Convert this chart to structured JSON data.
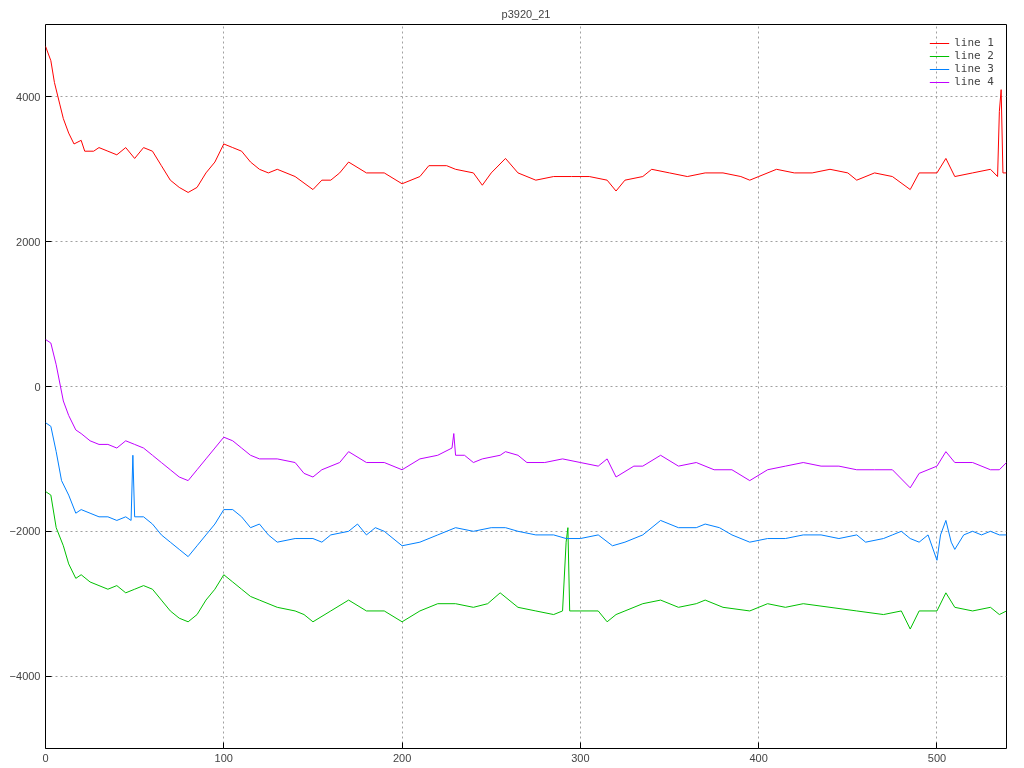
{
  "chart_data": {
    "type": "line",
    "title": "p3920_21",
    "xlim": [
      0,
      539
    ],
    "ylim": [
      -5000,
      5000
    ],
    "xticks": [
      0,
      100,
      200,
      300,
      400,
      500
    ],
    "yticks": [
      -4000,
      -2000,
      0,
      2000,
      4000
    ],
    "grid": true,
    "legend": "top right",
    "line_style": "solid",
    "marker": "none",
    "series": [
      {
        "name": "line 1",
        "color": "#ff0000",
        "x": [
          0,
          3,
          5,
          8,
          10,
          13,
          16,
          20,
          22,
          27,
          30,
          35,
          40,
          45,
          50,
          55,
          60,
          65,
          70,
          75,
          80,
          85,
          90,
          95,
          100,
          105,
          110,
          115,
          120,
          125,
          130,
          140,
          150,
          155,
          160,
          165,
          170,
          180,
          190,
          200,
          210,
          215,
          225,
          230,
          240,
          245,
          250,
          258,
          265,
          275,
          285,
          295,
          305,
          315,
          320,
          325,
          335,
          340,
          350,
          360,
          370,
          380,
          390,
          395,
          400,
          410,
          420,
          430,
          440,
          450,
          455,
          465,
          475,
          485,
          490,
          500,
          505,
          510,
          520,
          530,
          534,
          535,
          536,
          537,
          539
        ],
        "values": [
          4700,
          4500,
          4200,
          3900,
          3700,
          3500,
          3350,
          3400,
          3250,
          3250,
          3300,
          3250,
          3200,
          3300,
          3150,
          3300,
          3250,
          3050,
          2850,
          2750,
          2680,
          2750,
          2950,
          3100,
          3350,
          3300,
          3250,
          3100,
          3000,
          2950,
          3000,
          2900,
          2720,
          2850,
          2850,
          2950,
          3100,
          2950,
          2950,
          2800,
          2900,
          3050,
          3050,
          3000,
          2950,
          2780,
          2950,
          3150,
          2950,
          2850,
          2900,
          2900,
          2900,
          2850,
          2700,
          2850,
          2900,
          3000,
          2950,
          2900,
          2950,
          2950,
          2900,
          2850,
          2900,
          3000,
          2950,
          2950,
          3000,
          2950,
          2850,
          2950,
          2900,
          2720,
          2950,
          2950,
          3150,
          2900,
          2950,
          3000,
          2900,
          3800,
          4100,
          2950,
          2950
        ]
      },
      {
        "name": "line 2",
        "color": "#00c000",
        "x": [
          0,
          3,
          6,
          10,
          13,
          17,
          20,
          25,
          30,
          35,
          40,
          45,
          50,
          55,
          60,
          65,
          70,
          75,
          80,
          85,
          90,
          95,
          100,
          105,
          110,
          115,
          120,
          130,
          140,
          145,
          150,
          160,
          170,
          180,
          190,
          200,
          210,
          220,
          230,
          240,
          248,
          255,
          265,
          275,
          285,
          290,
          292,
          293,
          294,
          300,
          310,
          315,
          320,
          325,
          335,
          345,
          355,
          365,
          370,
          380,
          395,
          405,
          415,
          425,
          440,
          455,
          470,
          480,
          485,
          490,
          500,
          505,
          510,
          520,
          530,
          535,
          539
        ],
        "values": [
          -1450,
          -1500,
          -1950,
          -2200,
          -2450,
          -2650,
          -2600,
          -2700,
          -2750,
          -2800,
          -2750,
          -2850,
          -2800,
          -2750,
          -2800,
          -2950,
          -3100,
          -3200,
          -3250,
          -3150,
          -2950,
          -2800,
          -2600,
          -2700,
          -2800,
          -2900,
          -2950,
          -3050,
          -3100,
          -3150,
          -3250,
          -3100,
          -2950,
          -3100,
          -3100,
          -3250,
          -3100,
          -3000,
          -3000,
          -3050,
          -3000,
          -2850,
          -3050,
          -3100,
          -3150,
          -3100,
          -2150,
          -1950,
          -3100,
          -3100,
          -3100,
          -3250,
          -3150,
          -3100,
          -3000,
          -2950,
          -3050,
          -3000,
          -2950,
          -3050,
          -3100,
          -3000,
          -3050,
          -3000,
          -3050,
          -3100,
          -3150,
          -3100,
          -3350,
          -3100,
          -3100,
          -2850,
          -3050,
          -3100,
          -3050,
          -3150,
          -3100
        ]
      },
      {
        "name": "line 3",
        "color": "#0080ff",
        "x": [
          0,
          3,
          6,
          9,
          13,
          17,
          20,
          25,
          30,
          35,
          40,
          45,
          48,
          49,
          50,
          55,
          60,
          65,
          70,
          75,
          80,
          85,
          90,
          95,
          100,
          105,
          110,
          115,
          120,
          125,
          130,
          140,
          150,
          155,
          160,
          170,
          175,
          180,
          185,
          190,
          200,
          210,
          220,
          230,
          240,
          250,
          258,
          265,
          275,
          285,
          292,
          300,
          310,
          318,
          325,
          335,
          345,
          355,
          365,
          370,
          378,
          385,
          395,
          405,
          415,
          425,
          435,
          445,
          455,
          460,
          470,
          475,
          480,
          485,
          490,
          495,
          500,
          502,
          505,
          508,
          510,
          515,
          520,
          525,
          530,
          535,
          539
        ],
        "values": [
          -500,
          -550,
          -900,
          -1300,
          -1500,
          -1750,
          -1700,
          -1750,
          -1800,
          -1800,
          -1850,
          -1800,
          -1850,
          -950,
          -1800,
          -1800,
          -1900,
          -2050,
          -2150,
          -2250,
          -2350,
          -2200,
          -2050,
          -1900,
          -1700,
          -1700,
          -1800,
          -1950,
          -1900,
          -2050,
          -2150,
          -2100,
          -2100,
          -2150,
          -2050,
          -2000,
          -1900,
          -2050,
          -1950,
          -2000,
          -2200,
          -2150,
          -2050,
          -1950,
          -2000,
          -1950,
          -1950,
          -2000,
          -2050,
          -2050,
          -2100,
          -2100,
          -2050,
          -2200,
          -2150,
          -2050,
          -1850,
          -1950,
          -1950,
          -1900,
          -1950,
          -2050,
          -2150,
          -2100,
          -2100,
          -2050,
          -2050,
          -2100,
          -2050,
          -2150,
          -2100,
          -2050,
          -2000,
          -2100,
          -2150,
          -2050,
          -2400,
          -2050,
          -1850,
          -2150,
          -2250,
          -2050,
          -2000,
          -2050,
          -2000,
          -2050,
          -2050
        ]
      },
      {
        "name": "line 4",
        "color": "#c000ff",
        "x": [
          0,
          3,
          6,
          10,
          13,
          17,
          20,
          25,
          30,
          35,
          40,
          45,
          50,
          55,
          60,
          65,
          70,
          75,
          80,
          85,
          90,
          95,
          100,
          105,
          110,
          115,
          120,
          130,
          140,
          145,
          150,
          155,
          165,
          170,
          180,
          190,
          200,
          210,
          220,
          228,
          229,
          230,
          235,
          240,
          245,
          255,
          258,
          265,
          270,
          280,
          290,
          300,
          310,
          315,
          320,
          330,
          335,
          345,
          355,
          365,
          375,
          385,
          395,
          405,
          415,
          425,
          435,
          445,
          455,
          465,
          475,
          485,
          490,
          500,
          505,
          510,
          520,
          530,
          535,
          539
        ],
        "values": [
          650,
          600,
          300,
          -200,
          -400,
          -600,
          -650,
          -750,
          -800,
          -800,
          -850,
          -750,
          -800,
          -850,
          -950,
          -1050,
          -1150,
          -1250,
          -1300,
          -1150,
          -1000,
          -850,
          -700,
          -750,
          -850,
          -950,
          -1000,
          -1000,
          -1050,
          -1200,
          -1250,
          -1150,
          -1050,
          -900,
          -1050,
          -1050,
          -1150,
          -1000,
          -950,
          -850,
          -650,
          -950,
          -950,
          -1050,
          -1000,
          -950,
          -900,
          -950,
          -1050,
          -1050,
          -1000,
          -1050,
          -1100,
          -1000,
          -1250,
          -1100,
          -1100,
          -950,
          -1100,
          -1050,
          -1150,
          -1150,
          -1300,
          -1150,
          -1100,
          -1050,
          -1100,
          -1100,
          -1150,
          -1150,
          -1150,
          -1400,
          -1200,
          -1100,
          -900,
          -1050,
          -1050,
          -1150,
          -1150,
          -1050
        ]
      }
    ]
  }
}
